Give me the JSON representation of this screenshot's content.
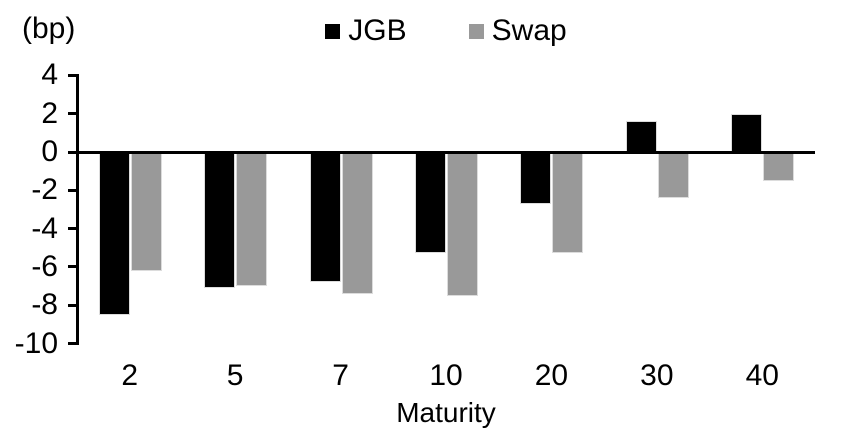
{
  "chart_data": {
    "type": "bar",
    "title": "",
    "unit_label": "(bp)",
    "xlabel": "Maturity",
    "ylabel": "",
    "categories": [
      "2",
      "5",
      "7",
      "10",
      "20",
      "30",
      "40"
    ],
    "series": [
      {
        "name": "JGB",
        "color": "#000000",
        "values": [
          -8.5,
          -7.1,
          -6.8,
          -5.3,
          -2.7,
          1.6,
          2.0
        ]
      },
      {
        "name": "Swap",
        "color": "#999999",
        "values": [
          -6.2,
          -7.0,
          -7.4,
          -7.5,
          -5.3,
          -2.4,
          -1.5
        ]
      }
    ],
    "ylim": [
      -10,
      4
    ],
    "ytick_step": 2,
    "grid": false,
    "legend_position": "top-center"
  }
}
